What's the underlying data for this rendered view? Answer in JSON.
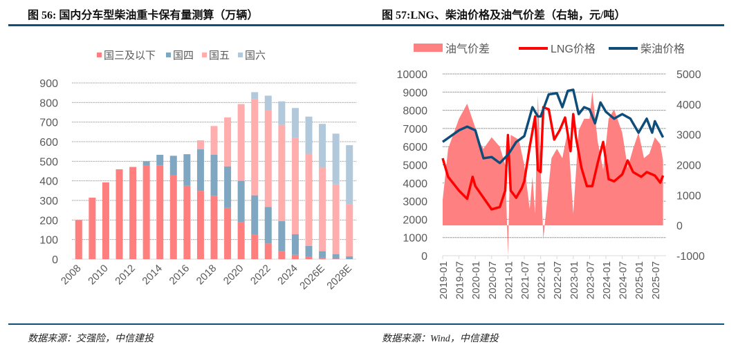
{
  "left": {
    "title": "图 56:  国内分车型柴油重卡保有量测算（万辆）",
    "source": "数据来源：交强险，中信建投"
  },
  "right": {
    "title": "图 57:LNG、柴油价格及油气价差（右轴，元/吨）",
    "source": "数据来源：Wind，中信建投"
  },
  "chart_data": [
    {
      "type": "bar",
      "stacked": true,
      "title": "国内分车型柴油重卡保有量测算（万辆）",
      "categories": [
        "2008",
        "2009",
        "2010",
        "2011",
        "2012",
        "2013",
        "2014",
        "2015",
        "2016",
        "2017",
        "2018",
        "2019",
        "2020",
        "2021",
        "2022",
        "2023",
        "2024",
        "2025",
        "2026E",
        "2027E",
        "2028E"
      ],
      "tick_labels": [
        "2008",
        "2010",
        "2012",
        "2014",
        "2016",
        "2018",
        "2020",
        "2022",
        "2024",
        "2026E",
        "2028E"
      ],
      "yticks": [
        "0",
        "100",
        "200",
        "300",
        "400",
        "500",
        "600",
        "700",
        "800",
        "900"
      ],
      "ylim": [
        0,
        900
      ],
      "grid": true,
      "legend_position": "top",
      "series": [
        {
          "name": "国三及以下",
          "color": "#FF7F7F",
          "values": [
            200,
            314,
            392,
            459,
            471,
            480,
            479,
            429,
            375,
            349,
            324,
            262,
            188,
            124,
            80,
            41,
            22,
            11,
            6,
            2,
            0
          ]
        },
        {
          "name": "国四",
          "color": "#7FA7C1",
          "values": [
            0,
            0,
            0,
            0,
            0,
            20,
            54,
            99,
            161,
            212,
            210,
            212,
            212,
            202,
            187,
            153,
            105,
            57,
            35,
            24,
            14
          ]
        },
        {
          "name": "国五",
          "color": "#FFADAD",
          "values": [
            0,
            0,
            0,
            0,
            0,
            0,
            0,
            0,
            0,
            46,
            146,
            250,
            392,
            492,
            492,
            492,
            493,
            470,
            427,
            356,
            268
          ]
        },
        {
          "name": "国六",
          "color": "#B1C9DA",
          "values": [
            0,
            0,
            0,
            0,
            0,
            0,
            0,
            0,
            0,
            0,
            0,
            0,
            0,
            35,
            76,
            120,
            152,
            190,
            223,
            259,
            300
          ]
        }
      ]
    },
    {
      "type": "line",
      "title": "LNG、柴油价格及油气价差（右轴，元/吨）",
      "x_ticks": [
        "2019-01",
        "2019-07",
        "2020-01",
        "2020-07",
        "2021-01",
        "2021-07",
        "2022-01",
        "2022-07",
        "2023-01",
        "2023-07",
        "2024-01",
        "2024-07",
        "2025-01",
        "2025-07"
      ],
      "yticks_left": [
        "0",
        "1000",
        "2000",
        "3000",
        "4000",
        "5000",
        "6000",
        "7000",
        "8000",
        "9000",
        "10000"
      ],
      "yticks_right": [
        "-1000",
        "0",
        "1000",
        "2000",
        "3000",
        "4000",
        "5000"
      ],
      "ylim_left": [
        0,
        10000
      ],
      "ylim_right": [
        -1000,
        5000
      ],
      "grid": true,
      "legend_position": "top",
      "series": [
        {
          "name": "油气价差",
          "kind": "area",
          "axis": "right",
          "color": "#FF8080",
          "points": [
            [
              "2019-01",
              840
            ],
            [
              "2019-03",
              2530
            ],
            [
              "2019-07",
              3520
            ],
            [
              "2019-10",
              4020
            ],
            [
              "2020-01",
              3220
            ],
            [
              "2020-03",
              2680
            ],
            [
              "2020-04",
              2530
            ],
            [
              "2020-07",
              2910
            ],
            [
              "2020-10",
              2600
            ],
            [
              "2020-12",
              1990
            ],
            [
              "2021-01",
              -1000
            ],
            [
              "2021-02",
              2990
            ],
            [
              "2021-05",
              2830
            ],
            [
              "2021-07",
              1990
            ],
            [
              "2021-09",
              540
            ],
            [
              "2021-10",
              1610
            ],
            [
              "2021-11",
              380
            ],
            [
              "2021-12",
              4290
            ],
            [
              "2022-02",
              -460
            ],
            [
              "2022-03",
              460
            ],
            [
              "2022-05",
              2220
            ],
            [
              "2022-07",
              2530
            ],
            [
              "2022-09",
              2220
            ],
            [
              "2022-11",
              3140
            ],
            [
              "2023-01",
              380
            ],
            [
              "2023-03",
              3140
            ],
            [
              "2023-05",
              3520
            ],
            [
              "2023-07",
              3520
            ],
            [
              "2023-08",
              4440
            ],
            [
              "2023-10",
              2760
            ],
            [
              "2023-12",
              1840
            ],
            [
              "2024-02",
              3520
            ],
            [
              "2024-04",
              3830
            ],
            [
              "2024-07",
              3060
            ],
            [
              "2024-09",
              1910
            ],
            [
              "2024-11",
              2530
            ],
            [
              "2025-01",
              3060
            ],
            [
              "2025-03",
              2220
            ],
            [
              "2025-05",
              2370
            ],
            [
              "2025-07",
              2910
            ],
            [
              "2025-09",
              2680
            ],
            [
              "2025-10",
              2140
            ]
          ]
        },
        {
          "name": "LNG价格",
          "kind": "line",
          "axis": "left",
          "color": "#FF0000",
          "points": [
            [
              "2019-01",
              5360
            ],
            [
              "2019-03",
              4340
            ],
            [
              "2019-07",
              3580
            ],
            [
              "2019-10",
              3130
            ],
            [
              "2019-12",
              4340
            ],
            [
              "2020-01",
              3830
            ],
            [
              "2020-04",
              3190
            ],
            [
              "2020-07",
              2550
            ],
            [
              "2020-10",
              2680
            ],
            [
              "2020-12",
              3580
            ],
            [
              "2021-01",
              6640
            ],
            [
              "2021-02",
              3580
            ],
            [
              "2021-04",
              3190
            ],
            [
              "2021-06",
              3700
            ],
            [
              "2021-07",
              4090
            ],
            [
              "2021-09",
              6000
            ],
            [
              "2021-11",
              7660
            ],
            [
              "2021-12",
              4720
            ],
            [
              "2022-01",
              4600
            ],
            [
              "2022-02",
              8170
            ],
            [
              "2022-04",
              8050
            ],
            [
              "2022-06",
              6390
            ],
            [
              "2022-08",
              6900
            ],
            [
              "2022-10",
              7600
            ],
            [
              "2022-12",
              5750
            ],
            [
              "2023-01",
              7790
            ],
            [
              "2023-02",
              6510
            ],
            [
              "2023-04",
              4850
            ],
            [
              "2023-06",
              3830
            ],
            [
              "2023-08",
              3830
            ],
            [
              "2023-10",
              5110
            ],
            [
              "2023-12",
              6260
            ],
            [
              "2024-02",
              4210
            ],
            [
              "2024-04",
              4090
            ],
            [
              "2024-07",
              4470
            ],
            [
              "2024-09",
              5240
            ],
            [
              "2024-11",
              4600
            ],
            [
              "2025-02",
              4340
            ],
            [
              "2025-04",
              4600
            ],
            [
              "2025-07",
              4410
            ],
            [
              "2025-09",
              4020
            ],
            [
              "2025-10",
              4410
            ]
          ]
        },
        {
          "name": "柴油价格",
          "kind": "line",
          "axis": "left",
          "color": "#0E4D7A",
          "points": [
            [
              "2019-01",
              6260
            ],
            [
              "2019-07",
              6900
            ],
            [
              "2019-10",
              7100
            ],
            [
              "2020-01",
              6900
            ],
            [
              "2020-04",
              5360
            ],
            [
              "2020-07",
              5430
            ],
            [
              "2020-10",
              5100
            ],
            [
              "2021-01",
              5550
            ],
            [
              "2021-04",
              6250
            ],
            [
              "2021-07",
              6580
            ],
            [
              "2021-10",
              8170
            ],
            [
              "2021-12",
              7660
            ],
            [
              "2022-01",
              7660
            ],
            [
              "2022-04",
              8880
            ],
            [
              "2022-07",
              8940
            ],
            [
              "2022-09",
              8170
            ],
            [
              "2022-11",
              9070
            ],
            [
              "2023-01",
              9130
            ],
            [
              "2023-03",
              7790
            ],
            [
              "2023-05",
              8170
            ],
            [
              "2023-07",
              8050
            ],
            [
              "2023-09",
              7280
            ],
            [
              "2023-11",
              8430
            ],
            [
              "2024-01",
              7920
            ],
            [
              "2024-04",
              7540
            ],
            [
              "2024-07",
              7790
            ],
            [
              "2024-10",
              7540
            ],
            [
              "2025-01",
              6770
            ],
            [
              "2025-04",
              7540
            ],
            [
              "2025-06",
              6770
            ],
            [
              "2025-07",
              7400
            ],
            [
              "2025-10",
              6510
            ]
          ]
        }
      ]
    }
  ]
}
